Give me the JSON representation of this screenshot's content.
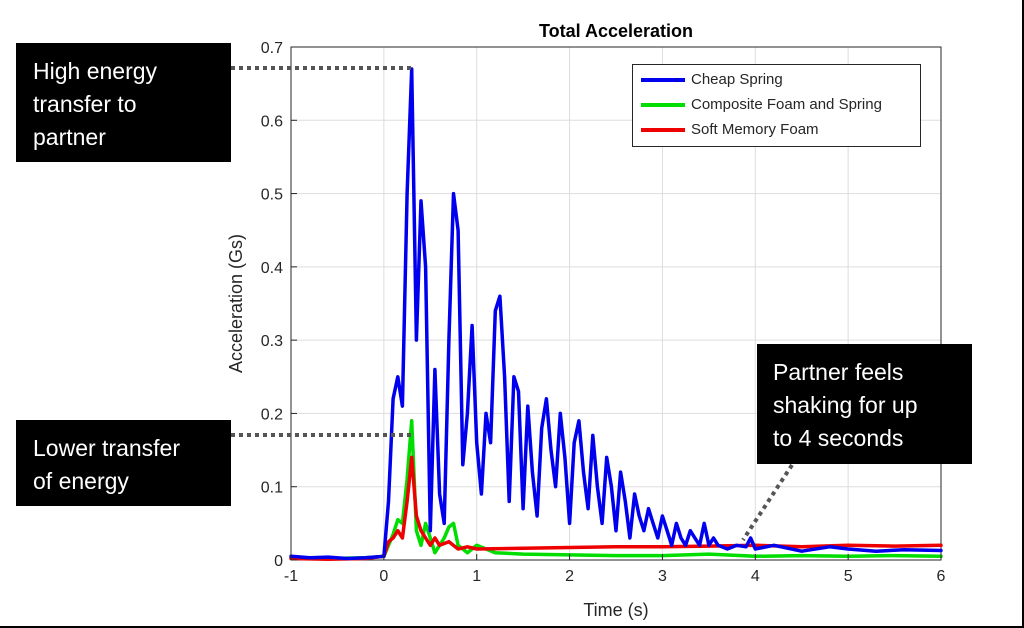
{
  "chart_data": {
    "type": "line",
    "title": "Total Acceleration",
    "xlabel": "Time (s)",
    "ylabel": "Acceleration (Gs)",
    "xlim": [
      -1,
      6
    ],
    "ylim": [
      0,
      0.7
    ],
    "xticks": [
      -1,
      0,
      1,
      2,
      3,
      4,
      5,
      6
    ],
    "yticks": [
      0,
      0.1,
      0.2,
      0.3,
      0.4,
      0.5,
      0.6,
      0.7
    ],
    "xtick_labels": [
      "-1",
      "0",
      "1",
      "2",
      "3",
      "4",
      "5",
      "6"
    ],
    "ytick_labels": [
      "0",
      "0.1",
      "0.2",
      "0.3",
      "0.4",
      "0.5",
      "0.6",
      "0.7"
    ],
    "grid": true,
    "legend_position": "top-right",
    "series": [
      {
        "name": "Cheap Spring",
        "color": "#0000ee",
        "x": [
          -1.0,
          -0.8,
          -0.6,
          -0.4,
          -0.2,
          0.0,
          0.05,
          0.1,
          0.15,
          0.2,
          0.25,
          0.3,
          0.35,
          0.4,
          0.45,
          0.5,
          0.55,
          0.6,
          0.65,
          0.7,
          0.75,
          0.8,
          0.85,
          0.9,
          0.95,
          1.0,
          1.05,
          1.1,
          1.15,
          1.2,
          1.25,
          1.3,
          1.35,
          1.4,
          1.45,
          1.5,
          1.55,
          1.6,
          1.65,
          1.7,
          1.75,
          1.8,
          1.85,
          1.9,
          1.95,
          2.0,
          2.05,
          2.1,
          2.15,
          2.2,
          2.25,
          2.3,
          2.35,
          2.4,
          2.45,
          2.5,
          2.55,
          2.6,
          2.65,
          2.7,
          2.75,
          2.8,
          2.85,
          2.9,
          2.95,
          3.0,
          3.05,
          3.1,
          3.15,
          3.2,
          3.25,
          3.3,
          3.35,
          3.4,
          3.45,
          3.5,
          3.55,
          3.6,
          3.7,
          3.8,
          3.9,
          3.95,
          4.0,
          4.2,
          4.5,
          4.8,
          5.0,
          5.3,
          5.6,
          6.0
        ],
        "y": [
          0.005,
          0.003,
          0.004,
          0.002,
          0.003,
          0.005,
          0.08,
          0.22,
          0.25,
          0.21,
          0.5,
          0.67,
          0.3,
          0.49,
          0.4,
          0.04,
          0.26,
          0.09,
          0.05,
          0.3,
          0.5,
          0.45,
          0.13,
          0.2,
          0.32,
          0.16,
          0.09,
          0.2,
          0.16,
          0.34,
          0.36,
          0.25,
          0.08,
          0.25,
          0.23,
          0.07,
          0.21,
          0.12,
          0.06,
          0.18,
          0.22,
          0.15,
          0.1,
          0.2,
          0.14,
          0.05,
          0.16,
          0.19,
          0.12,
          0.07,
          0.17,
          0.1,
          0.05,
          0.14,
          0.1,
          0.04,
          0.12,
          0.08,
          0.03,
          0.09,
          0.06,
          0.04,
          0.07,
          0.05,
          0.03,
          0.06,
          0.04,
          0.02,
          0.05,
          0.03,
          0.02,
          0.04,
          0.03,
          0.02,
          0.05,
          0.02,
          0.03,
          0.02,
          0.015,
          0.02,
          0.018,
          0.03,
          0.015,
          0.02,
          0.012,
          0.018,
          0.015,
          0.012,
          0.014,
          0.013
        ]
      },
      {
        "name": "Composite Foam and Spring",
        "color": "#00dd00",
        "x": [
          -1.0,
          -0.6,
          -0.2,
          0.0,
          0.05,
          0.1,
          0.15,
          0.2,
          0.25,
          0.3,
          0.35,
          0.4,
          0.45,
          0.5,
          0.55,
          0.6,
          0.65,
          0.7,
          0.75,
          0.8,
          0.85,
          0.9,
          1.0,
          1.2,
          1.5,
          2.0,
          2.5,
          3.0,
          3.5,
          4.0,
          4.5,
          5.0,
          5.5,
          6.0
        ],
        "y": [
          0.003,
          0.002,
          0.003,
          0.005,
          0.02,
          0.035,
          0.055,
          0.05,
          0.11,
          0.19,
          0.04,
          0.02,
          0.05,
          0.03,
          0.01,
          0.02,
          0.03,
          0.045,
          0.05,
          0.02,
          0.015,
          0.01,
          0.02,
          0.01,
          0.008,
          0.007,
          0.006,
          0.006,
          0.008,
          0.005,
          0.006,
          0.005,
          0.006,
          0.005
        ]
      },
      {
        "name": "Soft Memory Foam",
        "color": "#ee0000",
        "x": [
          -1.0,
          -0.6,
          -0.2,
          0.0,
          0.05,
          0.1,
          0.15,
          0.2,
          0.25,
          0.3,
          0.35,
          0.4,
          0.45,
          0.5,
          0.55,
          0.6,
          0.7,
          0.8,
          0.9,
          1.0,
          1.5,
          2.0,
          2.5,
          3.0,
          3.5,
          4.0,
          4.5,
          5.0,
          5.5,
          6.0
        ],
        "y": [
          0.002,
          0.001,
          0.002,
          0.005,
          0.025,
          0.03,
          0.04,
          0.03,
          0.08,
          0.14,
          0.06,
          0.04,
          0.03,
          0.02,
          0.03,
          0.02,
          0.025,
          0.015,
          0.018,
          0.015,
          0.016,
          0.017,
          0.018,
          0.018,
          0.019,
          0.02,
          0.018,
          0.02,
          0.019,
          0.02
        ]
      }
    ]
  },
  "annotations": {
    "high_energy": [
      "High energy",
      "transfer to",
      "partner"
    ],
    "lower_transfer": [
      "Lower transfer",
      "of energy"
    ],
    "partner_feels": [
      "Partner feels",
      "shaking for up",
      "to 4 seconds"
    ]
  },
  "colors": {
    "axis": "#262626",
    "grid": "#dddddd",
    "callout_bg": "#000000",
    "callout_text": "#ffffff",
    "dotted_leader": "#555555"
  }
}
